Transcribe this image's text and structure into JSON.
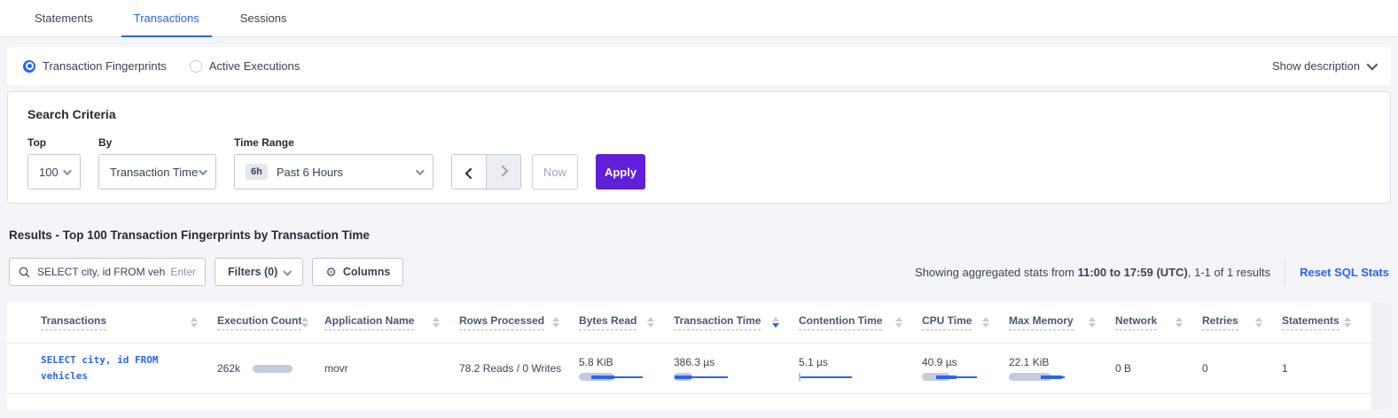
{
  "tabs": {
    "items": [
      {
        "label": "Statements",
        "active": false
      },
      {
        "label": "Transactions",
        "active": true
      },
      {
        "label": "Sessions",
        "active": false
      }
    ]
  },
  "view_toggle": {
    "options": [
      {
        "label": "Transaction Fingerprints",
        "selected": true
      },
      {
        "label": "Active Executions",
        "selected": false
      }
    ],
    "show_description_label": "Show description"
  },
  "search_criteria": {
    "title": "Search Criteria",
    "top": {
      "label": "Top",
      "value": "100"
    },
    "by": {
      "label": "By",
      "value": "Transaction Time"
    },
    "time_range": {
      "label": "Time Range",
      "badge": "6h",
      "value": "Past 6 Hours"
    },
    "now_label": "Now",
    "apply_label": "Apply"
  },
  "results": {
    "title": "Results - Top 100 Transaction Fingerprints by Transaction Time",
    "search": {
      "value": "SELECT city, id FROM vehicles W",
      "enter_hint": "Enter"
    },
    "filters_label": "Filters (0)",
    "columns_label": "Columns",
    "gear_glyph": "⚙",
    "stats_prefix": "Showing aggregated stats from ",
    "stats_range": "11:00 to 17:59 (UTC)",
    "stats_suffix": ", 1-1 of 1 results",
    "reset_label": "Reset SQL Stats"
  },
  "table": {
    "columns": [
      {
        "label": "Transactions",
        "sort": "none"
      },
      {
        "label": "Execution Count",
        "sort": "none"
      },
      {
        "label": "Application Name",
        "sort": "none"
      },
      {
        "label": "Rows Processed",
        "sort": "none"
      },
      {
        "label": "Bytes Read",
        "sort": "none"
      },
      {
        "label": "Transaction Time",
        "sort": "desc"
      },
      {
        "label": "Contention Time",
        "sort": "none"
      },
      {
        "label": "CPU Time",
        "sort": "none"
      },
      {
        "label": "Max Memory",
        "sort": "none"
      },
      {
        "label": "Network",
        "sort": "none"
      },
      {
        "label": "Retries",
        "sort": "none"
      },
      {
        "label": "Statements",
        "sort": "none"
      }
    ],
    "row": {
      "transaction": "SELECT city, id FROM vehicles",
      "execution_count": "262k",
      "application_name": "movr",
      "rows_processed": "78.2 Reads / 0 Writes",
      "bytes_read": "5.8 KiB",
      "transaction_time": "386.3 µs",
      "contention_time": "5.1 µs",
      "cpu_time": "40.9 µs",
      "max_memory": "22.1 KiB",
      "network": "0 B",
      "retries": "0",
      "statements": "1"
    },
    "bars": {
      "execution_count": {
        "gray": 45
      },
      "bytes_read": {
        "gray": 40,
        "thick": [
          14,
          40
        ],
        "line": [
          14,
          72
        ]
      },
      "transaction_time": {
        "gray": 21,
        "thick": [
          1,
          20
        ],
        "line": [
          1,
          61
        ]
      },
      "contention_time": {
        "tick": true,
        "line": [
          2,
          60
        ]
      },
      "cpu_time": {
        "gray": 32,
        "thick": [
          16,
          39
        ],
        "line": [
          16,
          62
        ]
      },
      "max_memory": {
        "gray": 48,
        "thick": [
          36,
          60
        ],
        "line": [
          36,
          63
        ]
      }
    }
  },
  "colors": {
    "accent_blue": "#2962ff",
    "apply_purple": "#6020d9",
    "bar_gray": "#c5cbde",
    "page_bg": "#f4f5f8"
  }
}
